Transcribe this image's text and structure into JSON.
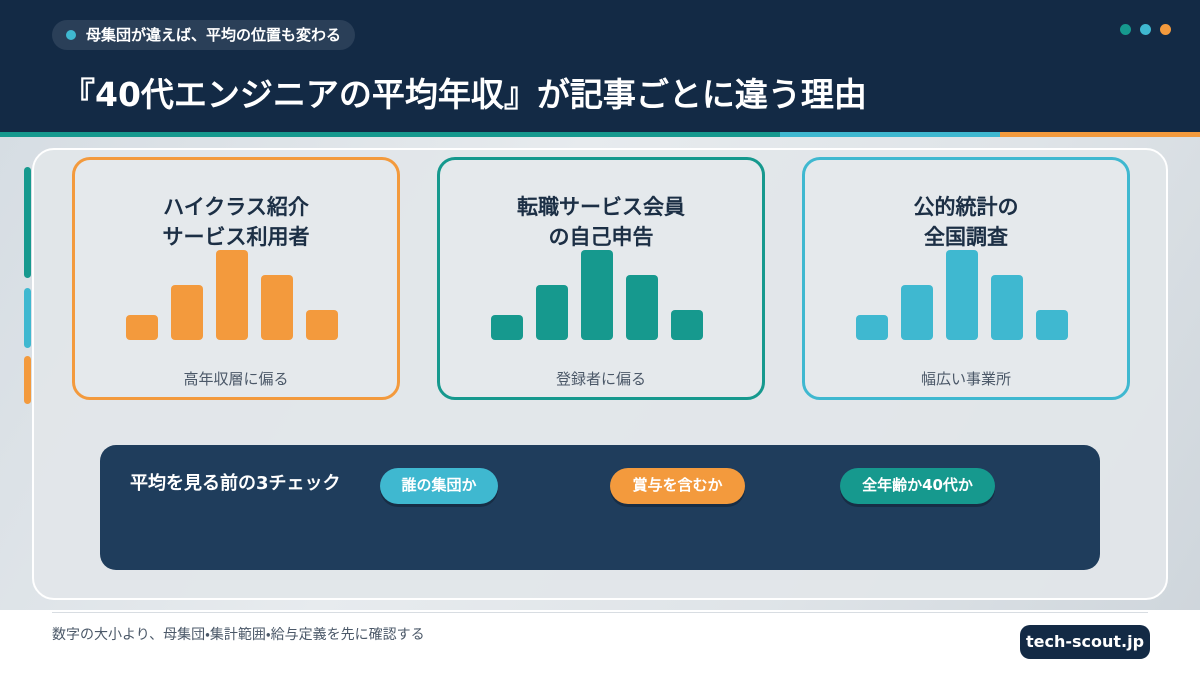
{
  "header": {
    "badge": "母集団が違えば、平均の位置も変わる",
    "title": "『40代エンジニアの平均年収』が記事ごとに違う理由"
  },
  "panels": [
    {
      "title_lines": [
        "ハイクラス紹介",
        "サービス利用者"
      ],
      "caption": "高年収層に偏る"
    },
    {
      "title_lines": [
        "転職サービス会員",
        "の自己申告"
      ],
      "caption": "登録者に偏る"
    },
    {
      "title_lines": [
        "公的統計の",
        "全国調査"
      ],
      "caption": "幅広い事業所"
    }
  ],
  "checklist": {
    "title": "平均を見る前の3チェック",
    "items": [
      "誰の集団か",
      "賞与を含むか",
      "全年齢か40代か"
    ]
  },
  "footer": {
    "note": "数字の大小より、母集団・集計範囲・給与定義を先に確認する",
    "brand": "tech-scout.jp"
  }
}
